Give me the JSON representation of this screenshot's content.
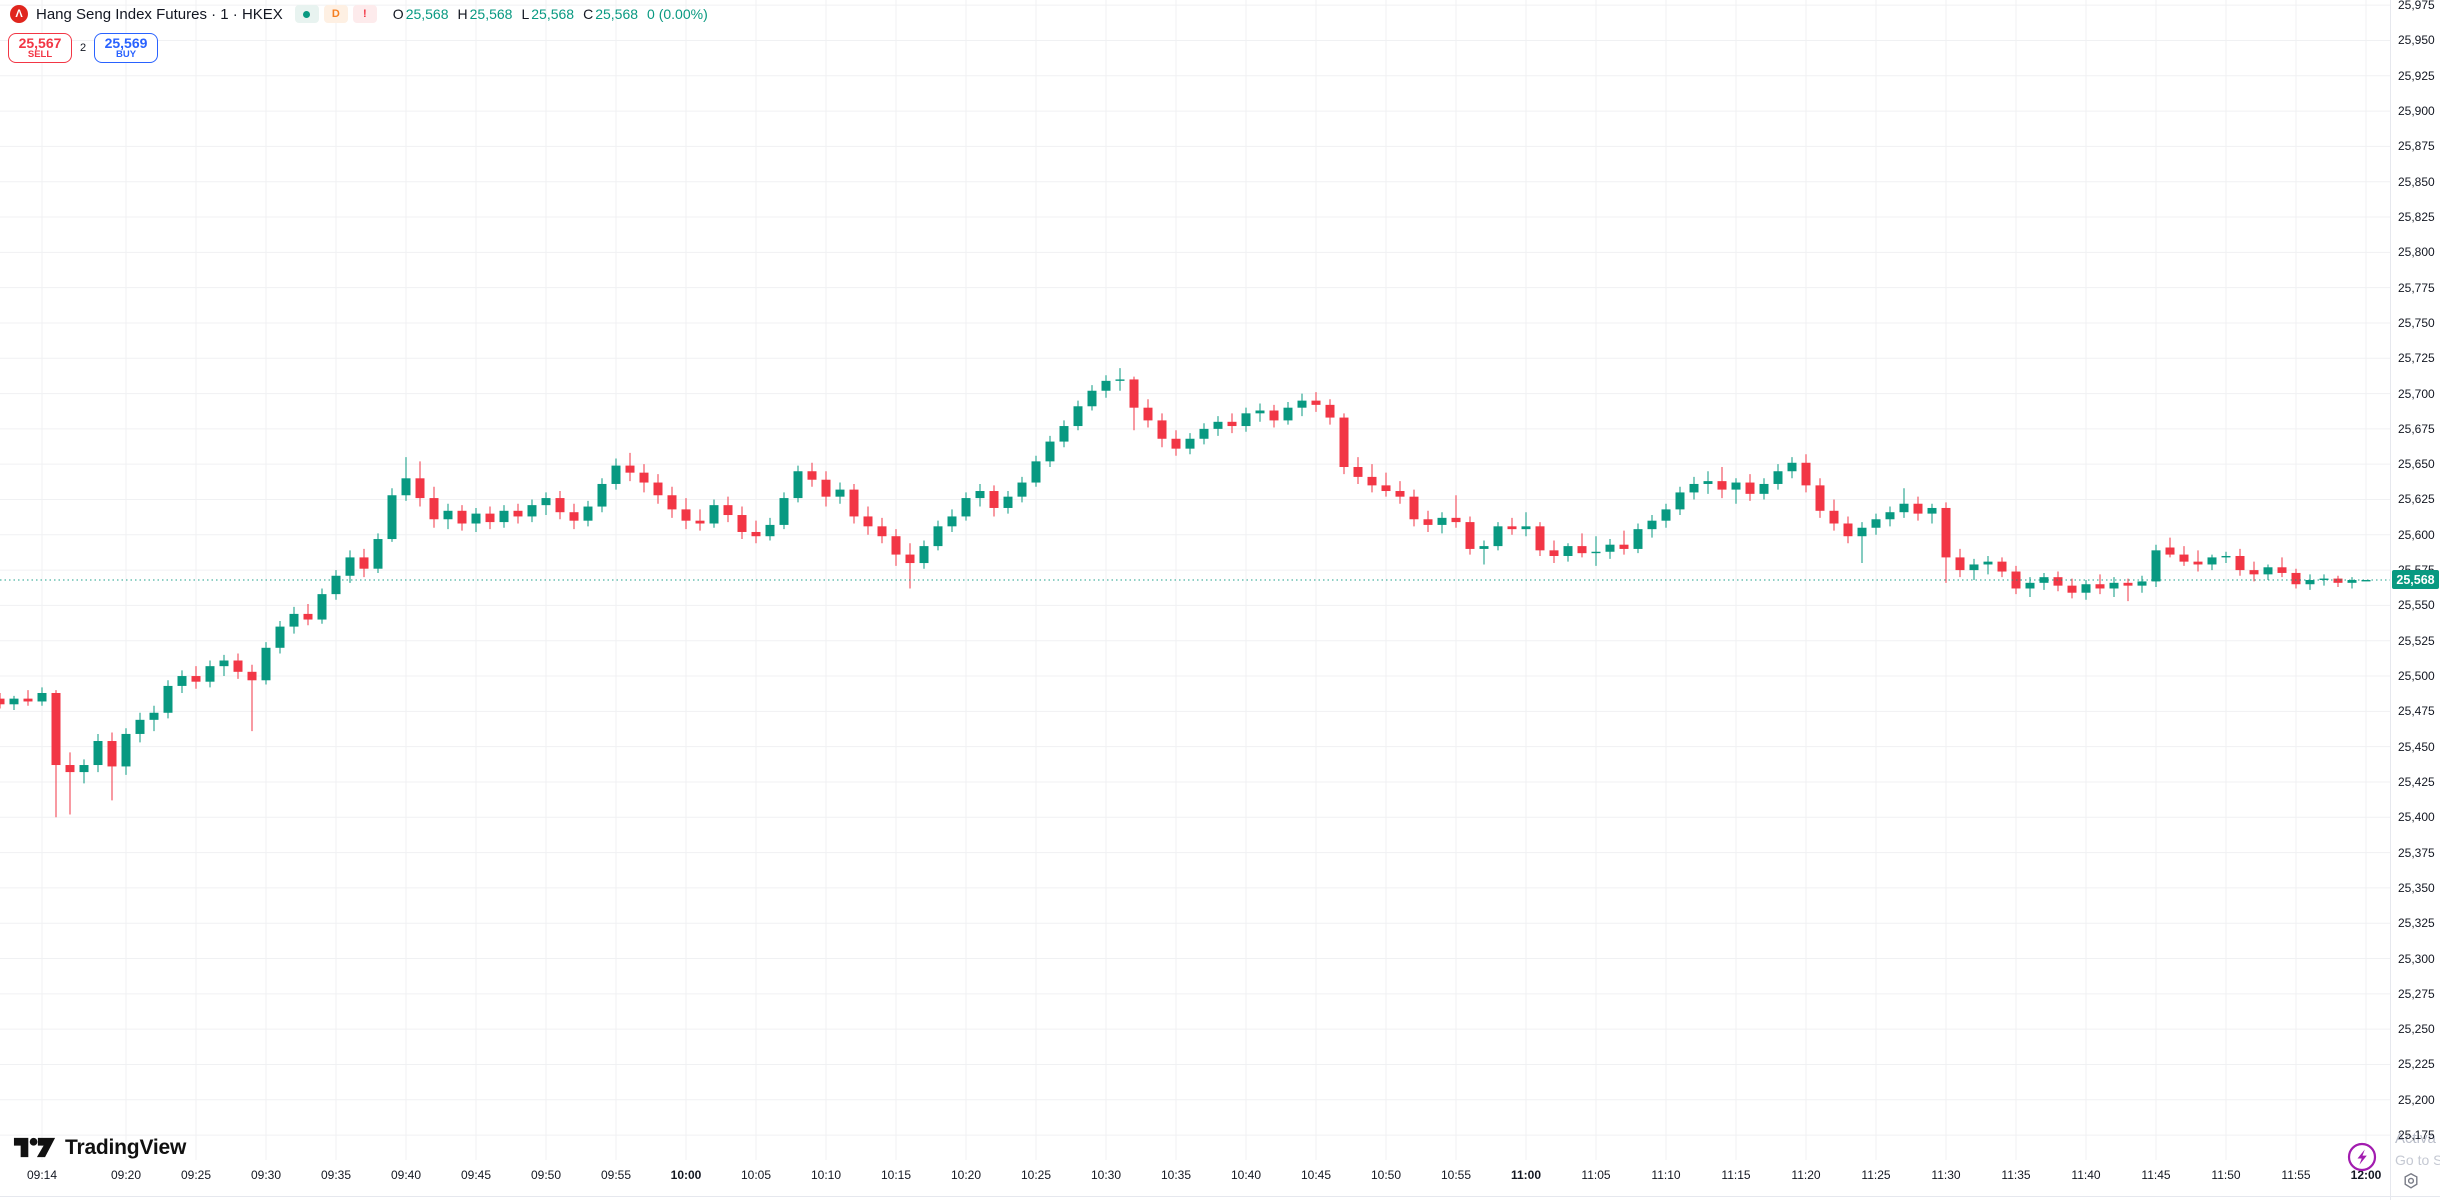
{
  "header": {
    "title": "Hang Seng Index Futures · 1 · HKEX",
    "badges": {
      "interval": "D",
      "alert": "!"
    },
    "ohlc": {
      "open_label": "O",
      "open": "25,568",
      "high_label": "H",
      "high": "25,568",
      "low_label": "L",
      "low": "25,568",
      "close_label": "C",
      "close": "25,568",
      "change": "0 (0.00%)"
    }
  },
  "order_panel": {
    "sell_price": "25,567",
    "sell_label": "SELL",
    "spread": "2",
    "buy_price": "25,569",
    "buy_label": "BUY"
  },
  "footer": {
    "logo_text": "TradingView"
  },
  "price_axis": {
    "labels": [
      "25,975",
      "25,950",
      "25,925",
      "25,900",
      "25,875",
      "25,850",
      "25,825",
      "25,800",
      "25,775",
      "25,750",
      "25,725",
      "25,700",
      "25,675",
      "25,650",
      "25,625",
      "25,600",
      "25,575",
      "25,550",
      "25,525",
      "25,500",
      "25,475",
      "25,450",
      "25,425",
      "25,400",
      "25,375",
      "25,350",
      "25,325",
      "25,300",
      "25,275",
      "25,250",
      "25,225",
      "25,200",
      "25,175"
    ],
    "current_price": "25,568",
    "promo_line1": "Activa",
    "promo_line2": "Go to S"
  },
  "time_axis": {
    "labels": [
      "09:14",
      "09:20",
      "09:25",
      "09:30",
      "09:35",
      "09:40",
      "09:45",
      "09:50",
      "09:55",
      "10:00",
      "10:05",
      "10:10",
      "10:15",
      "10:20",
      "10:25",
      "10:30",
      "10:35",
      "10:40",
      "10:45",
      "10:50",
      "10:55",
      "11:00",
      "11:05",
      "11:10",
      "11:15",
      "11:20",
      "11:25",
      "11:30",
      "11:35",
      "11:40",
      "11:45",
      "11:50",
      "11:55",
      "12:00"
    ],
    "bold_labels": [
      "10:00",
      "11:00",
      "12:00"
    ]
  },
  "colors": {
    "up": "#089981",
    "down": "#f23645",
    "buy_blue": "#2962ff",
    "sell_red": "#f23645",
    "grid": "#f0f1f3",
    "axis_border": "#e6e8ee",
    "text": "#131722",
    "logo_red": "#e0251d",
    "accent_purple": "#a21caf",
    "badge_bg": "#089981"
  },
  "chart_data": {
    "type": "candlestick",
    "symbol": "Hang Seng Index Futures",
    "exchange": "HKEX",
    "interval_minutes": 1,
    "start_time": "09:11",
    "current_price": 25568,
    "up_color": "#089981",
    "down_color": "#f23645",
    "y_axis": {
      "min_label": 25175,
      "max_label": 25975,
      "step": 25
    },
    "candles": [
      [
        25484,
        25488,
        25477,
        25480
      ],
      [
        25480,
        25486,
        25476,
        25484
      ],
      [
        25484,
        25490,
        25479,
        25482
      ],
      [
        25482,
        25492,
        25479,
        25488
      ],
      [
        25488,
        25490,
        25400,
        25437
      ],
      [
        25437,
        25446,
        25402,
        25432
      ],
      [
        25432,
        25441,
        25424,
        25437
      ],
      [
        25437,
        25459,
        25432,
        25454
      ],
      [
        25454,
        25460,
        25412,
        25436
      ],
      [
        25436,
        25463,
        25430,
        25459
      ],
      [
        25459,
        25474,
        25453,
        25469
      ],
      [
        25469,
        25479,
        25461,
        25474
      ],
      [
        25474,
        25497,
        25470,
        25493
      ],
      [
        25493,
        25504,
        25488,
        25500
      ],
      [
        25500,
        25507,
        25491,
        25496
      ],
      [
        25496,
        25511,
        25492,
        25507
      ],
      [
        25507,
        25515,
        25500,
        25511
      ],
      [
        25511,
        25516,
        25498,
        25503
      ],
      [
        25503,
        25508,
        25461,
        25497
      ],
      [
        25497,
        25524,
        25494,
        25520
      ],
      [
        25520,
        25539,
        25516,
        25535
      ],
      [
        25535,
        25549,
        25530,
        25544
      ],
      [
        25544,
        25551,
        25536,
        25540
      ],
      [
        25540,
        25562,
        25537,
        25558
      ],
      [
        25558,
        25575,
        25554,
        25571
      ],
      [
        25571,
        25589,
        25566,
        25584
      ],
      [
        25584,
        25590,
        25570,
        25576
      ],
      [
        25576,
        25601,
        25573,
        25597
      ],
      [
        25597,
        25633,
        25595,
        25628
      ],
      [
        25628,
        25655,
        25624,
        25640
      ],
      [
        25640,
        25652,
        25620,
        25626
      ],
      [
        25626,
        25634,
        25605,
        25611
      ],
      [
        25611,
        25622,
        25604,
        25617
      ],
      [
        25617,
        25621,
        25603,
        25608
      ],
      [
        25608,
        25619,
        25602,
        25615
      ],
      [
        25615,
        25620,
        25604,
        25609
      ],
      [
        25609,
        25621,
        25605,
        25617
      ],
      [
        25617,
        25622,
        25608,
        25613
      ],
      [
        25613,
        25625,
        25609,
        25621
      ],
      [
        25621,
        25630,
        25614,
        25626
      ],
      [
        25626,
        25631,
        25611,
        25616
      ],
      [
        25616,
        25622,
        25604,
        25610
      ],
      [
        25610,
        25624,
        25606,
        25620
      ],
      [
        25620,
        25640,
        25616,
        25636
      ],
      [
        25636,
        25654,
        25632,
        25649
      ],
      [
        25649,
        25658,
        25638,
        25644
      ],
      [
        25644,
        25650,
        25630,
        25637
      ],
      [
        25637,
        25643,
        25622,
        25628
      ],
      [
        25628,
        25634,
        25612,
        25618
      ],
      [
        25618,
        25626,
        25604,
        25610
      ],
      [
        25610,
        25618,
        25603,
        25608
      ],
      [
        25608,
        25625,
        25605,
        25621
      ],
      [
        25621,
        25627,
        25609,
        25614
      ],
      [
        25614,
        25620,
        25597,
        25602
      ],
      [
        25602,
        25610,
        25594,
        25599
      ],
      [
        25599,
        25612,
        25596,
        25607
      ],
      [
        25607,
        25630,
        25604,
        25626
      ],
      [
        25626,
        25649,
        25623,
        25645
      ],
      [
        25645,
        25651,
        25634,
        25639
      ],
      [
        25639,
        25645,
        25620,
        25627
      ],
      [
        25627,
        25637,
        25622,
        25632
      ],
      [
        25632,
        25636,
        25608,
        25613
      ],
      [
        25613,
        25620,
        25600,
        25606
      ],
      [
        25606,
        25612,
        25594,
        25599
      ],
      [
        25599,
        25604,
        25578,
        25586
      ],
      [
        25586,
        25594,
        25562,
        25580
      ],
      [
        25580,
        25596,
        25576,
        25592
      ],
      [
        25592,
        25610,
        25589,
        25606
      ],
      [
        25606,
        25618,
        25602,
        25613
      ],
      [
        25613,
        25630,
        25610,
        25626
      ],
      [
        25626,
        25636,
        25620,
        25631
      ],
      [
        25631,
        25635,
        25613,
        25619
      ],
      [
        25619,
        25631,
        25615,
        25627
      ],
      [
        25627,
        25641,
        25623,
        25637
      ],
      [
        25637,
        25656,
        25634,
        25652
      ],
      [
        25652,
        25670,
        25648,
        25666
      ],
      [
        25666,
        25681,
        25662,
        25677
      ],
      [
        25677,
        25695,
        25674,
        25691
      ],
      [
        25691,
        25706,
        25688,
        25702
      ],
      [
        25702,
        25713,
        25697,
        25709
      ],
      [
        25709,
        25718,
        25702,
        25710
      ],
      [
        25710,
        25712,
        25674,
        25690
      ],
      [
        25690,
        25696,
        25676,
        25681
      ],
      [
        25681,
        25686,
        25662,
        25668
      ],
      [
        25668,
        25674,
        25656,
        25661
      ],
      [
        25661,
        25672,
        25657,
        25668
      ],
      [
        25668,
        25679,
        25664,
        25675
      ],
      [
        25675,
        25684,
        25670,
        25680
      ],
      [
        25680,
        25686,
        25672,
        25677
      ],
      [
        25677,
        25690,
        25673,
        25686
      ],
      [
        25686,
        25693,
        25680,
        25688
      ],
      [
        25688,
        25692,
        25676,
        25681
      ],
      [
        25681,
        25694,
        25678,
        25690
      ],
      [
        25690,
        25700,
        25684,
        25695
      ],
      [
        25695,
        25701,
        25687,
        25692
      ],
      [
        25692,
        25696,
        25678,
        25683
      ],
      [
        25683,
        25686,
        25643,
        25648
      ],
      [
        25648,
        25655,
        25636,
        25641
      ],
      [
        25641,
        25650,
        25630,
        25635
      ],
      [
        25635,
        25644,
        25627,
        25631
      ],
      [
        25631,
        25638,
        25622,
        25627
      ],
      [
        25627,
        25632,
        25606,
        25611
      ],
      [
        25611,
        25617,
        25602,
        25607
      ],
      [
        25607,
        25616,
        25601,
        25612
      ],
      [
        25612,
        25628,
        25605,
        25609
      ],
      [
        25609,
        25613,
        25586,
        25590
      ],
      [
        25590,
        25596,
        25579,
        25592
      ],
      [
        25592,
        25609,
        25589,
        25606
      ],
      [
        25606,
        25612,
        25600,
        25604
      ],
      [
        25604,
        25616,
        25599,
        25606
      ],
      [
        25606,
        25609,
        25585,
        25589
      ],
      [
        25589,
        25596,
        25580,
        25585
      ],
      [
        25585,
        25594,
        25581,
        25592
      ],
      [
        25592,
        25601,
        25584,
        25587
      ],
      [
        25587,
        25599,
        25578,
        25588
      ],
      [
        25588,
        25597,
        25583,
        25593
      ],
      [
        25593,
        25603,
        25586,
        25590
      ],
      [
        25590,
        25608,
        25587,
        25604
      ],
      [
        25604,
        25614,
        25598,
        25610
      ],
      [
        25610,
        25622,
        25605,
        25618
      ],
      [
        25618,
        25634,
        25614,
        25630
      ],
      [
        25630,
        25641,
        25625,
        25636
      ],
      [
        25636,
        25645,
        25629,
        25638
      ],
      [
        25638,
        25648,
        25626,
        25632
      ],
      [
        25632,
        25640,
        25622,
        25637
      ],
      [
        25637,
        25643,
        25624,
        25629
      ],
      [
        25629,
        25640,
        25625,
        25636
      ],
      [
        25636,
        25650,
        25632,
        25645
      ],
      [
        25645,
        25655,
        25640,
        25651
      ],
      [
        25651,
        25657,
        25630,
        25635
      ],
      [
        25635,
        25640,
        25612,
        25617
      ],
      [
        25617,
        25625,
        25603,
        25608
      ],
      [
        25608,
        25613,
        25594,
        25599
      ],
      [
        25599,
        25609,
        25580,
        25605
      ],
      [
        25605,
        25615,
        25600,
        25611
      ],
      [
        25611,
        25620,
        25606,
        25616
      ],
      [
        25616,
        25633,
        25612,
        25622
      ],
      [
        25622,
        25627,
        25610,
        25615
      ],
      [
        25615,
        25622,
        25608,
        25619
      ],
      [
        25619,
        25623,
        25566,
        25584
      ],
      [
        25584,
        25590,
        25570,
        25575
      ],
      [
        25575,
        25583,
        25568,
        25579
      ],
      [
        25579,
        25585,
        25572,
        25581
      ],
      [
        25581,
        25584,
        25570,
        25574
      ],
      [
        25574,
        25578,
        25558,
        25562
      ],
      [
        25562,
        25570,
        25556,
        25566
      ],
      [
        25566,
        25573,
        25561,
        25570
      ],
      [
        25570,
        25574,
        25560,
        25564
      ],
      [
        25564,
        25569,
        25555,
        25559
      ],
      [
        25559,
        25568,
        25554,
        25565
      ],
      [
        25565,
        25572,
        25558,
        25562
      ],
      [
        25562,
        25570,
        25556,
        25566
      ],
      [
        25566,
        25569,
        25553,
        25564
      ],
      [
        25564,
        25571,
        25559,
        25567
      ],
      [
        25567,
        25593,
        25563,
        25589
      ],
      [
        25591,
        25598,
        25584,
        25586
      ],
      [
        25586,
        25592,
        25578,
        25581
      ],
      [
        25581,
        25589,
        25574,
        25579
      ],
      [
        25579,
        25586,
        25575,
        25584
      ],
      [
        25584,
        25588,
        25580,
        25585
      ],
      [
        25585,
        25590,
        25571,
        25575
      ],
      [
        25575,
        25581,
        25567,
        25572
      ],
      [
        25572,
        25579,
        25568,
        25577
      ],
      [
        25577,
        25584,
        25570,
        25573
      ],
      [
        25573,
        25576,
        25562,
        25565
      ],
      [
        25565,
        25572,
        25561,
        25568
      ],
      [
        25568,
        25572,
        25564,
        25569
      ],
      [
        25569,
        25571,
        25563,
        25566
      ],
      [
        25566,
        25570,
        25562,
        25568
      ],
      [
        25568,
        25568,
        25568,
        25568
      ]
    ]
  }
}
